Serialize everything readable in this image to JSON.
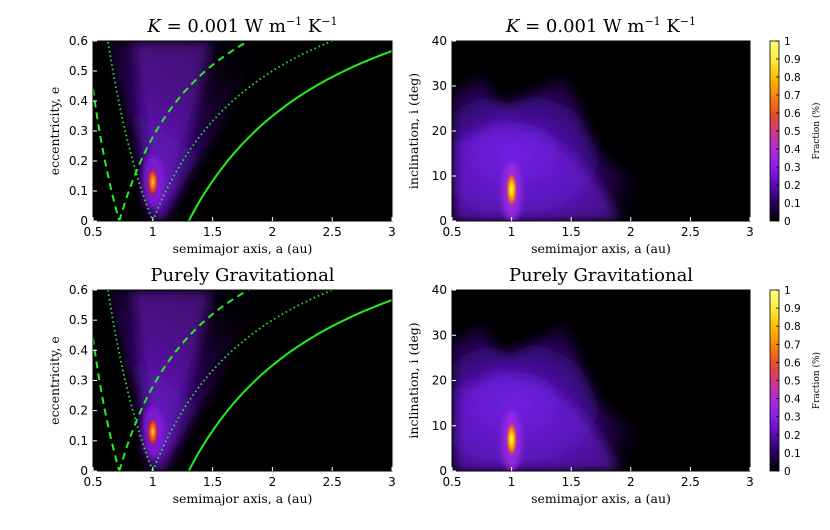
{
  "chart_data": [
    {
      "type": "heatmap",
      "title_prefix": "K",
      "title": " = 0.001 W m",
      "title_exp1": "−1",
      "title_mid": " K",
      "title_exp2": "−1",
      "xlabel": "semimajor axis, a (au)",
      "ylabel": "eccentricity, e",
      "xlim": [
        0.5,
        3
      ],
      "ylim": [
        0,
        0.6
      ],
      "xticks": [
        "0.5",
        "1",
        "1.5",
        "2",
        "2.5",
        "3"
      ],
      "yticks": [
        "0",
        "0.1",
        "0.2",
        "0.3",
        "0.4",
        "0.5",
        "0.6"
      ],
      "peak": {
        "a": 1.0,
        "e": 0.13
      },
      "reference_curves": [
        {
          "style": "solid",
          "color": "#22ee22",
          "perihelion_au": 1.3
        },
        {
          "style": "dashed",
          "color": "#22ee22",
          "perihelion_au": 0.72
        },
        {
          "style": "dashed-aphelion",
          "color": "#22ee22",
          "aphelion_au": 0.72
        },
        {
          "style": "dotted",
          "color": "#22ee22",
          "perihelion_au": 1.0
        },
        {
          "style": "dotted-aphelion",
          "color": "#22ee22",
          "aphelion_au": 1.0
        }
      ]
    },
    {
      "type": "heatmap",
      "title_prefix": "K",
      "title": " = 0.001 W m",
      "title_exp1": "−1",
      "title_mid": " K",
      "title_exp2": "−1",
      "xlabel": "semimajor axis, a (au)",
      "ylabel": "inclination, i (deg)",
      "xlim": [
        0.5,
        3
      ],
      "ylim": [
        0,
        40
      ],
      "xticks": [
        "0.5",
        "1",
        "1.5",
        "2",
        "2.5",
        "3"
      ],
      "yticks": [
        "0",
        "10",
        "20",
        "30",
        "40"
      ],
      "peak": {
        "a": 1.0,
        "i": 7
      }
    },
    {
      "type": "heatmap",
      "title": "Purely Gravitational",
      "xlabel": "semimajor axis, a (au)",
      "ylabel": "eccentricity, e",
      "xlim": [
        0.5,
        3
      ],
      "ylim": [
        0,
        0.6
      ],
      "xticks": [
        "0.5",
        "1",
        "1.5",
        "2",
        "2.5",
        "3"
      ],
      "yticks": [
        "0",
        "0.1",
        "0.2",
        "0.3",
        "0.4",
        "0.5",
        "0.6"
      ],
      "peak": {
        "a": 1.0,
        "e": 0.13
      },
      "reference_curves": [
        {
          "style": "solid",
          "color": "#22ee22",
          "perihelion_au": 1.3
        },
        {
          "style": "dashed",
          "color": "#22ee22",
          "perihelion_au": 0.72
        },
        {
          "style": "dashed-aphelion",
          "color": "#22ee22",
          "aphelion_au": 0.72
        },
        {
          "style": "dotted",
          "color": "#22ee22",
          "perihelion_au": 1.0
        },
        {
          "style": "dotted-aphelion",
          "color": "#22ee22",
          "aphelion_au": 1.0
        }
      ]
    },
    {
      "type": "heatmap",
      "title": "Purely Gravitational",
      "xlabel": "semimajor axis, a (au)",
      "ylabel": "inclination, i (deg)",
      "xlim": [
        0.5,
        3
      ],
      "ylim": [
        0,
        40
      ],
      "xticks": [
        "0.5",
        "1",
        "1.5",
        "2",
        "2.5",
        "3"
      ],
      "yticks": [
        "0",
        "10",
        "20",
        "30",
        "40"
      ],
      "peak": {
        "a": 1.0,
        "i": 7
      }
    }
  ],
  "colorbar": {
    "label": "Fraction (%)",
    "ticks": [
      "0",
      "0.1",
      "0.2",
      "0.3",
      "0.4",
      "0.5",
      "0.6",
      "0.7",
      "0.8",
      "0.9",
      "1"
    ],
    "range": [
      0,
      1
    ],
    "colormap": "gnuplot-like",
    "colors": [
      "#000000",
      "#2a0060",
      "#5a0cb0",
      "#8a1ee8",
      "#b02ad8",
      "#d03a80",
      "#e85020",
      "#f58810",
      "#ffc000",
      "#ffee40",
      "#ffff80"
    ]
  }
}
